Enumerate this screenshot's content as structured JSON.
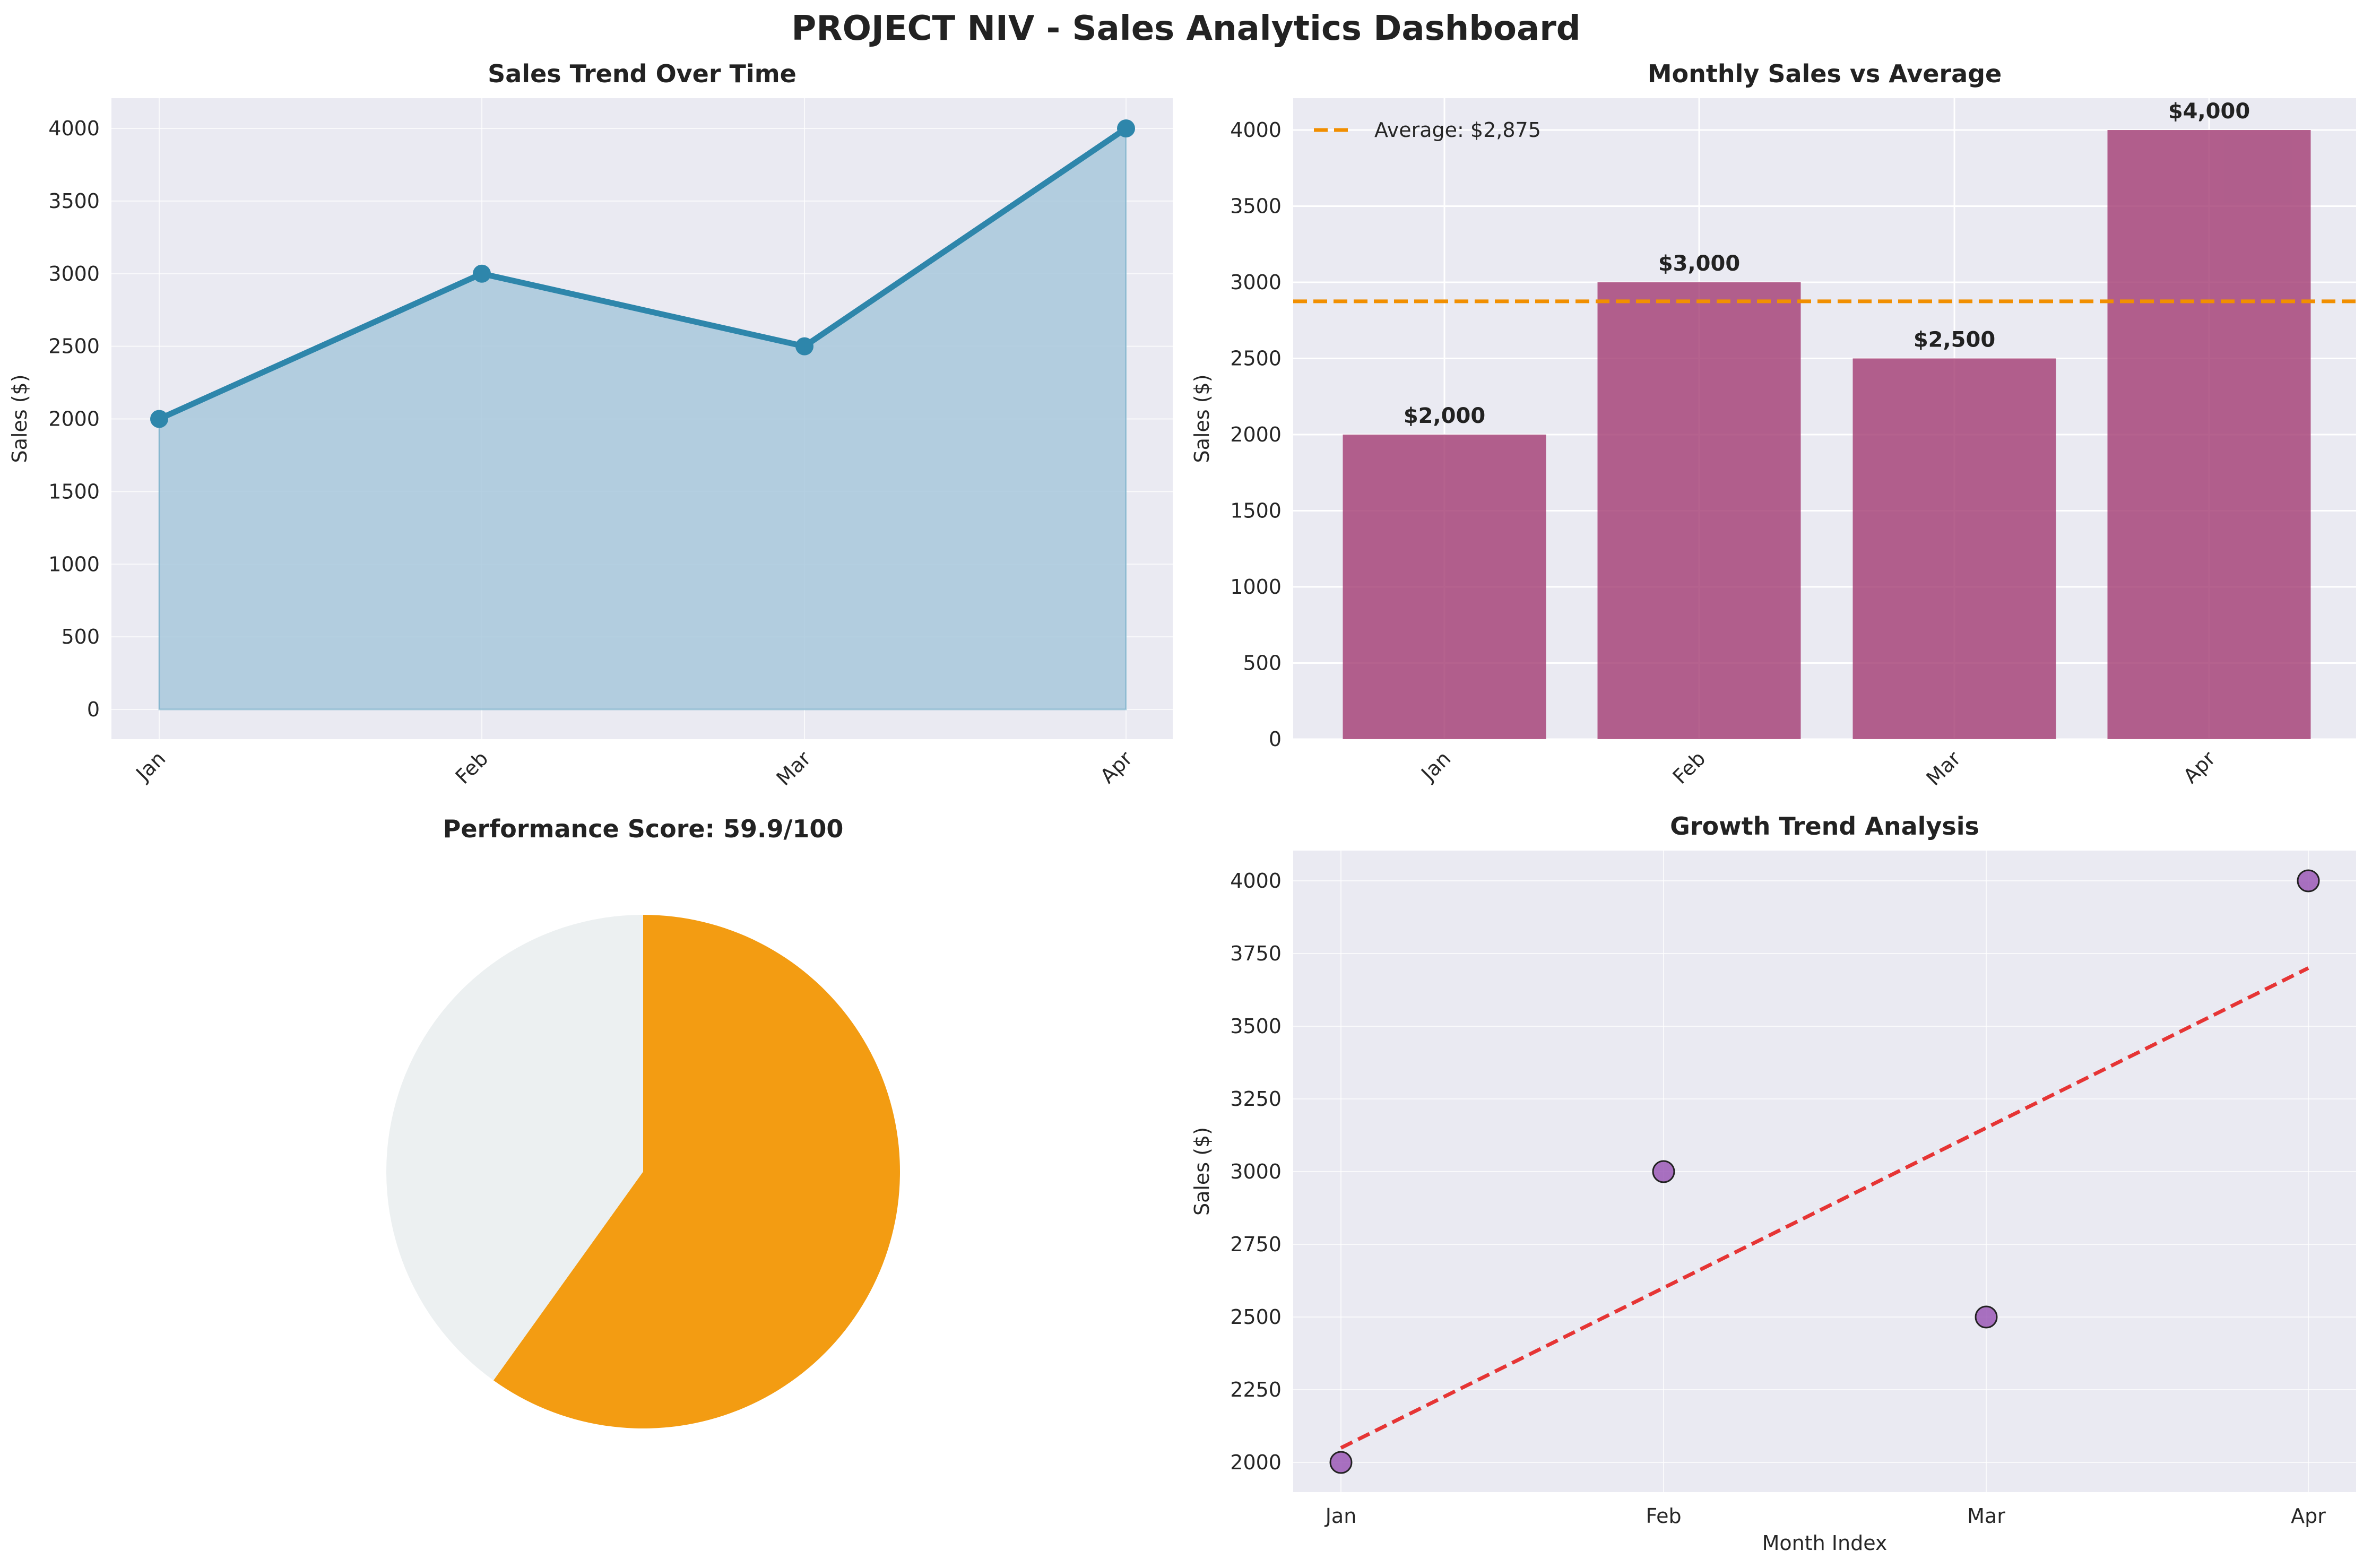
{
  "dashboard": {
    "title": "PROJECT NIV - Sales Analytics Dashboard"
  },
  "colors": {
    "line": "#2e86ab",
    "area_fill": "#a8c8dc",
    "panel_bg": "#eaeaf2",
    "bar": "#a23b72",
    "avg_line": "#f18f01",
    "pie_score": "#f39c12",
    "pie_rest": "#ecf0f1",
    "scatter": "#9b59b6",
    "trend": "#e63535"
  },
  "chart_data": [
    {
      "type": "area",
      "title": "Sales Trend Over Time",
      "xlabel": "",
      "ylabel": "Sales ($)",
      "categories": [
        "Jan",
        "Feb",
        "Mar",
        "Apr"
      ],
      "values": [
        2000,
        3000,
        2500,
        4000
      ],
      "ylim": [
        -200,
        4200
      ],
      "yticks": [
        "0",
        "500",
        "1000",
        "1500",
        "2000",
        "2500",
        "3000",
        "3500",
        "4000"
      ],
      "grid": true
    },
    {
      "type": "bar",
      "title": "Monthly Sales vs Average",
      "xlabel": "",
      "ylabel": "Sales ($)",
      "categories": [
        "Jan",
        "Feb",
        "Mar",
        "Apr"
      ],
      "values": [
        2000,
        3000,
        2500,
        4000
      ],
      "value_labels": [
        "$2,000",
        "$3,000",
        "$2,500",
        "$4,000"
      ],
      "average": 2875,
      "legend": [
        "Average: $2,875"
      ],
      "legend_position": "top-left",
      "ylim": [
        0,
        4200
      ],
      "yticks": [
        "0",
        "500",
        "1000",
        "1500",
        "2000",
        "2500",
        "3000",
        "3500",
        "4000"
      ],
      "grid": true
    },
    {
      "type": "pie",
      "title": "Performance Score: 59.9/100",
      "values": [
        59.9,
        40.1
      ]
    },
    {
      "type": "scatter",
      "title": "Growth Trend Analysis",
      "xlabel": "Month Index",
      "ylabel": "Sales ($)",
      "categories": [
        "Jan",
        "Feb",
        "Mar",
        "Apr"
      ],
      "values": [
        2000,
        3000,
        2500,
        4000
      ],
      "trend_start": 2050,
      "trend_end": 3700,
      "ylim": [
        1900,
        4100
      ],
      "yticks": [
        "2000",
        "2250",
        "2500",
        "2750",
        "3000",
        "3250",
        "3500",
        "3750",
        "4000"
      ],
      "grid": true
    }
  ]
}
